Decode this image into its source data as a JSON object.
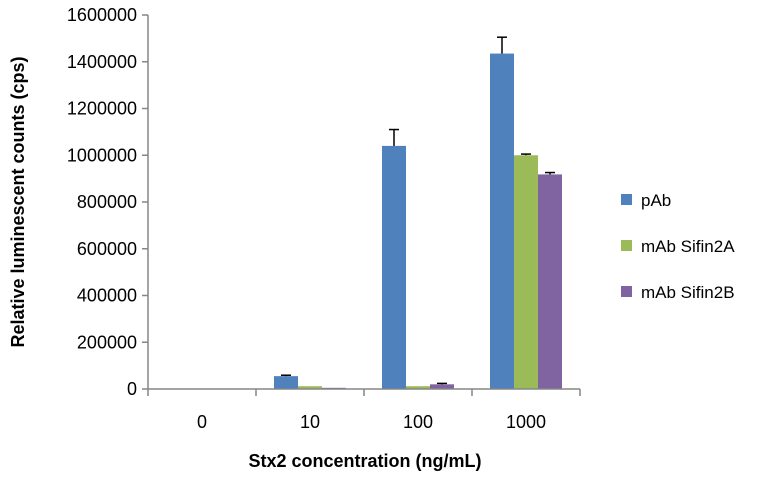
{
  "chart_data": {
    "type": "bar",
    "title": "",
    "xlabel": "Stx2 concentration (ng/mL)",
    "ylabel": "Relative luminescent counts (cps)",
    "categories": [
      "0",
      "10",
      "100",
      "1000"
    ],
    "ylim": [
      0,
      1600000
    ],
    "yticks": [
      "0",
      "200000",
      "400000",
      "600000",
      "800000",
      "1000000",
      "1200000",
      "1400000",
      "1600000"
    ],
    "ytick_values": [
      0,
      200000,
      400000,
      600000,
      800000,
      1000000,
      1200000,
      1400000,
      1600000
    ],
    "legend_position": "right",
    "grid": false,
    "series": [
      {
        "name": "pAb",
        "color": "#4F81BD",
        "values": [
          2000,
          55000,
          1040000,
          1435000
        ],
        "errors": [
          0,
          4000,
          70000,
          70000
        ]
      },
      {
        "name": "mAb Sifin2A",
        "color": "#9BBB59",
        "values": [
          1000,
          12000,
          12000,
          1000000
        ],
        "errors": [
          0,
          0,
          0,
          5000
        ]
      },
      {
        "name": "mAb Sifin2B",
        "color": "#8064A2",
        "values": [
          1000,
          5000,
          20000,
          918000
        ],
        "errors": [
          0,
          0,
          4000,
          8000
        ]
      }
    ]
  }
}
